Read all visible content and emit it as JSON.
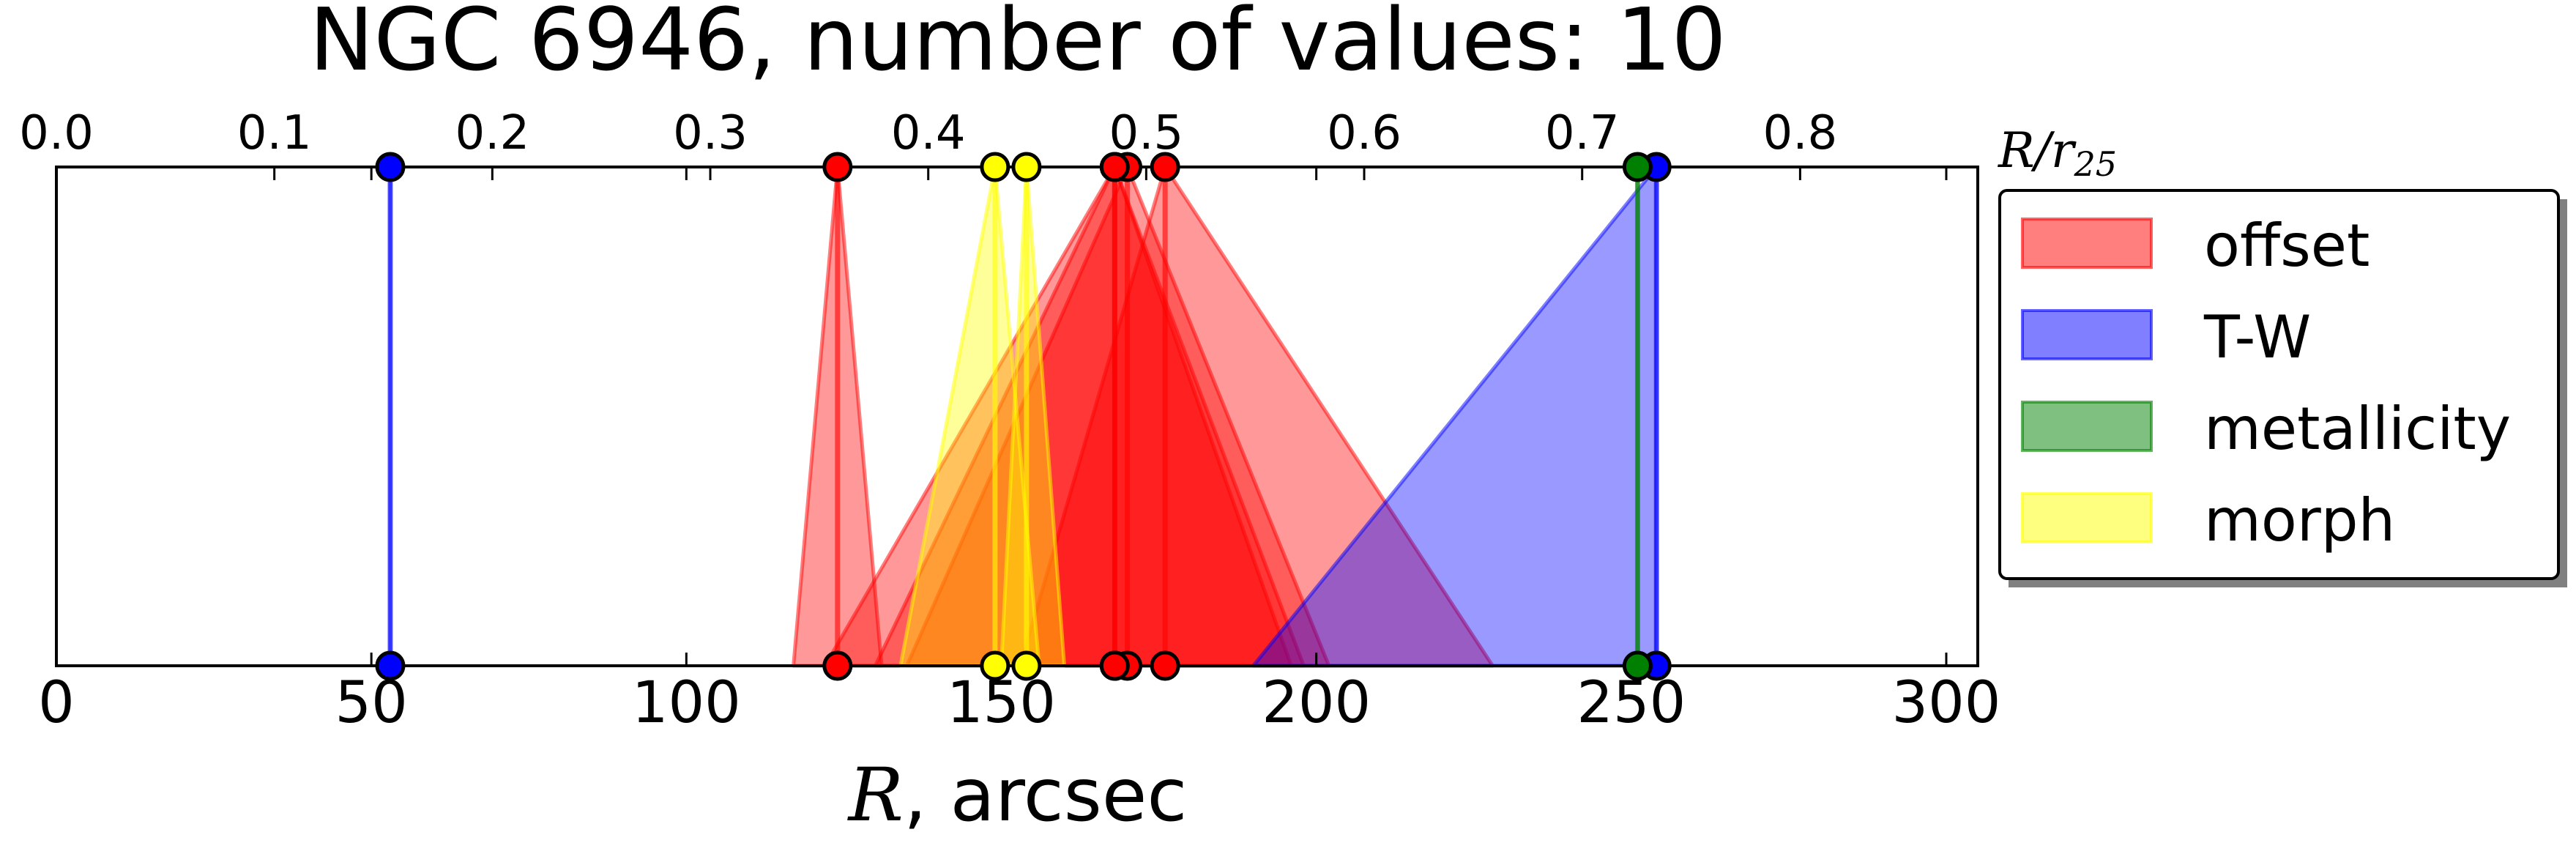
{
  "chart_data": {
    "type": "area",
    "title": "NGC 6946, number of values: 10",
    "xlabel_math": "R",
    "xlabel_unit": ", arcsec",
    "top_axis_label": "R/r",
    "top_axis_sub": "25",
    "xlim": [
      0,
      305
    ],
    "bottom_ticks": [
      "0",
      "50",
      "100",
      "150",
      "200",
      "250",
      "300"
    ],
    "top_ticks": [
      "0.0",
      "0.1",
      "0.2",
      "0.3",
      "0.4",
      "0.5",
      "0.6",
      "0.7",
      "0.8"
    ],
    "top_tick_step_arcsec": 34.6,
    "legend": {
      "placement": "upper-right-outside",
      "entries": [
        {
          "label": "offset",
          "color": "#ff0000"
        },
        {
          "label": "T-W",
          "color": "#0000ff"
        },
        {
          "label": "metallicity",
          "color": "#008000"
        },
        {
          "label": "morph",
          "color": "#ffff00"
        }
      ]
    },
    "series": [
      {
        "name": "offset",
        "color": "#ff0000",
        "values": [
          {
            "r": 124,
            "lo": 117,
            "hi": 131
          },
          {
            "r": 168,
            "lo": 122,
            "hi": 198
          },
          {
            "r": 170,
            "lo": 135,
            "hi": 202
          },
          {
            "r": 176,
            "lo": 153,
            "hi": 228
          },
          {
            "r": 168,
            "lo": 130,
            "hi": 196
          }
        ]
      },
      {
        "name": "T-W",
        "color": "#0000ff",
        "values": [
          {
            "r": 53,
            "lo": 53,
            "hi": 53
          },
          {
            "r": 254,
            "lo": 190,
            "hi": 254
          }
        ]
      },
      {
        "name": "metallicity",
        "color": "#008000",
        "values": [
          {
            "r": 251,
            "lo": 251,
            "hi": 251
          }
        ]
      },
      {
        "name": "morph",
        "color": "#ffff00",
        "values": [
          {
            "r": 149,
            "lo": 134,
            "hi": 156
          },
          {
            "r": 154,
            "lo": 150,
            "hi": 160
          }
        ]
      }
    ]
  }
}
